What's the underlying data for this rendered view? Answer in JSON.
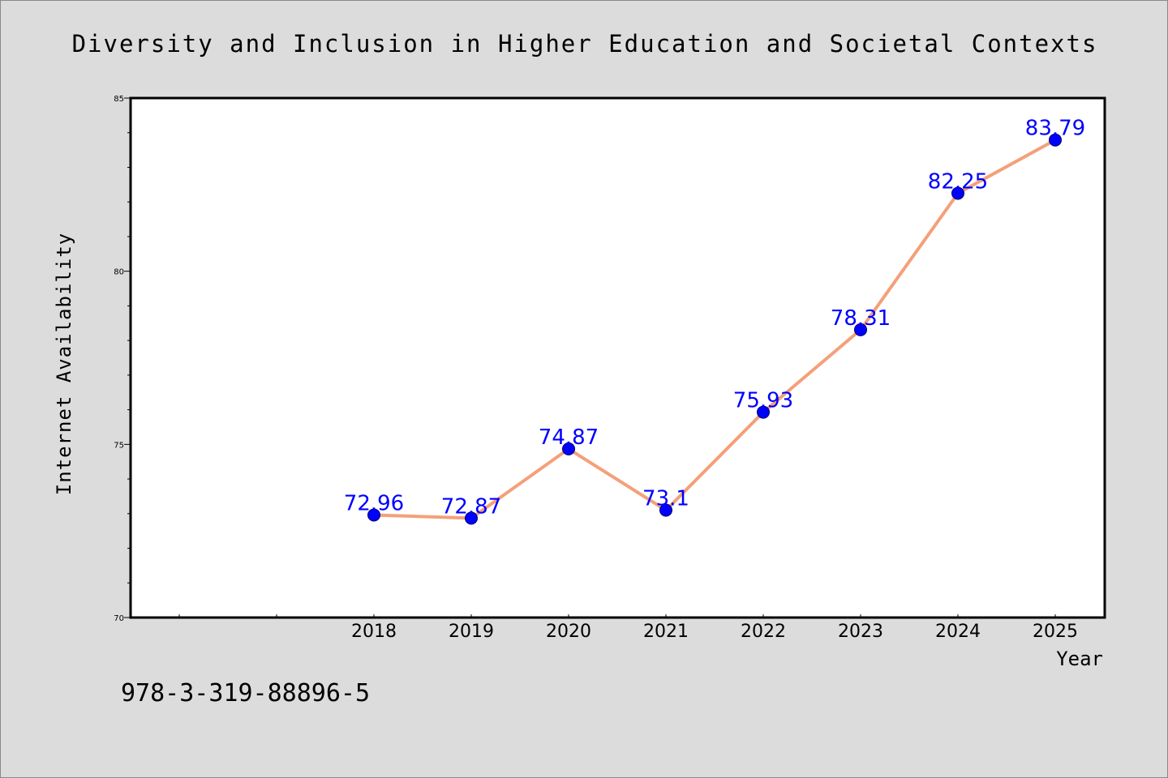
{
  "chart_data": {
    "type": "line",
    "title": "Diversity and Inclusion in Higher Education and Societal Contexts",
    "xlabel": "Year",
    "ylabel": "Internet Availability",
    "categories": [
      "2018",
      "2019",
      "2020",
      "2021",
      "2022",
      "2023",
      "2024",
      "2025"
    ],
    "x_axis_slots": 10,
    "x_first_category_slot": 2,
    "series": [
      {
        "values": [
          72.96,
          72.87,
          74.87,
          73.1,
          75.93,
          78.31,
          82.25,
          83.79
        ],
        "data_labels": [
          "72.96",
          "72.87",
          "74.87",
          "73.1",
          "75.93",
          "78.31",
          "82.25",
          "83.79"
        ],
        "line_color": "#f4a07a",
        "marker_color": "#0000ff"
      }
    ],
    "ylim": [
      70,
      85
    ],
    "y_major_ticks": [
      70,
      75,
      80,
      85
    ],
    "y_minor_step": 1,
    "grid": false,
    "legend": "none"
  },
  "footer": {
    "isbn": "978-3-319-88896-5"
  }
}
